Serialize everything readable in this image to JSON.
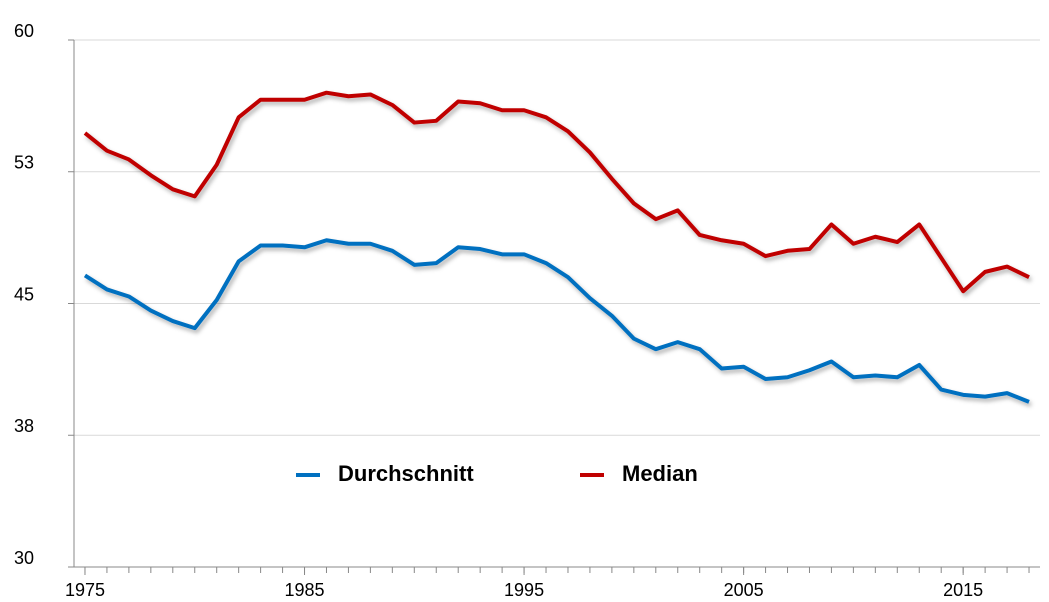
{
  "chart_data": {
    "type": "line",
    "x": [
      1975,
      1976,
      1977,
      1978,
      1979,
      1980,
      1981,
      1982,
      1983,
      1984,
      1985,
      1986,
      1987,
      1988,
      1989,
      1990,
      1991,
      1992,
      1993,
      1994,
      1995,
      1996,
      1997,
      1998,
      1999,
      2000,
      2001,
      2002,
      2003,
      2004,
      2005,
      2006,
      2007,
      2008,
      2009,
      2010,
      2011,
      2012,
      2013,
      2014,
      2015,
      2016,
      2017,
      2018
    ],
    "series": [
      {
        "name": "Durchschnitt",
        "color": "#0070c0",
        "values": [
          46.6,
          45.8,
          45.4,
          44.6,
          44.0,
          43.6,
          45.2,
          47.4,
          48.3,
          48.3,
          48.2,
          48.6,
          48.4,
          48.4,
          48.0,
          47.2,
          47.3,
          48.2,
          48.1,
          47.8,
          47.8,
          47.3,
          46.5,
          45.3,
          44.3,
          43.0,
          42.4,
          42.8,
          42.4,
          41.3,
          41.4,
          40.7,
          40.8,
          41.2,
          41.7,
          40.8,
          40.9,
          40.8,
          41.5,
          40.1,
          39.8,
          39.7,
          39.9,
          39.4
        ]
      },
      {
        "name": "Median",
        "color": "#c00000",
        "values": [
          54.7,
          53.7,
          53.2,
          52.3,
          51.5,
          51.1,
          52.9,
          55.6,
          56.6,
          56.6,
          56.6,
          57.0,
          56.8,
          56.9,
          56.3,
          55.3,
          55.4,
          56.5,
          56.4,
          56.0,
          56.0,
          55.6,
          54.8,
          53.6,
          52.1,
          50.7,
          49.8,
          50.3,
          48.9,
          48.6,
          48.4,
          47.7,
          48.0,
          48.1,
          49.5,
          48.4,
          48.8,
          48.5,
          49.5,
          47.6,
          45.7,
          46.8,
          47.1,
          46.5
        ]
      }
    ],
    "xlim": [
      1974.5,
      2018.5
    ],
    "xticks": [
      1975,
      1985,
      1995,
      2005,
      2015
    ],
    "ylim": [
      30,
      60
    ],
    "yticks": [
      30,
      {
        "value": 37.5,
        "label": "38"
      },
      45,
      {
        "value": 52.5,
        "label": "53"
      },
      60
    ],
    "grid": true,
    "legend": "center"
  }
}
